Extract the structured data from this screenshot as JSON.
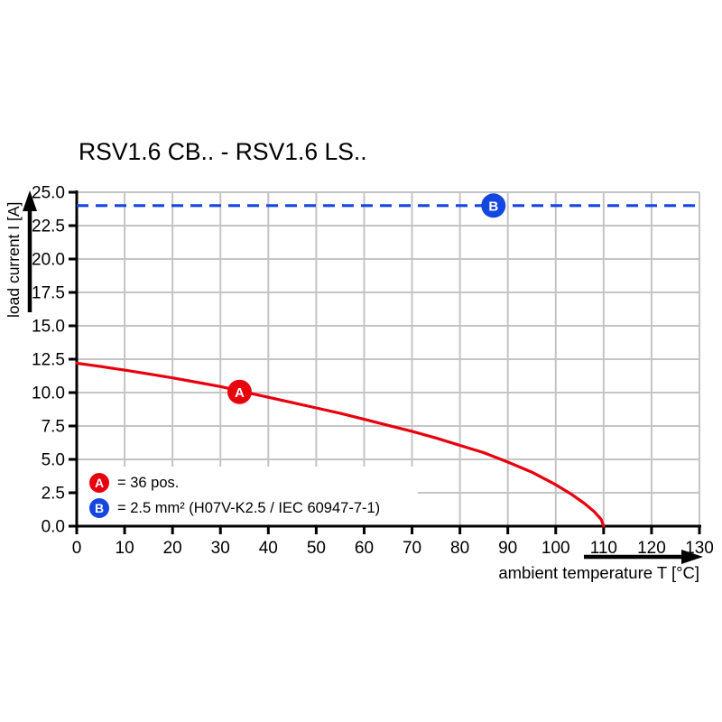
{
  "page": {
    "background": "#ffffff"
  },
  "colors": {
    "series_a": "#e8000d",
    "series_b": "#1546e0",
    "grid": "#c4c4c4",
    "axis": "#000000"
  },
  "legend": {
    "items": [
      {
        "symbol": "A",
        "text": "= 36 pos.",
        "color": "#e8000d"
      },
      {
        "symbol": "B",
        "text": "= 2.5 mm² (H07V-K2.5 / IEC 60947-7-1)",
        "color": "#1546e0"
      }
    ]
  },
  "chart_data": {
    "type": "line",
    "title": "RSV1.6 CB.. - RSV1.6 LS..",
    "xlabel": "ambient temperature T [°C]",
    "ylabel": "load current I [A]",
    "xlim": [
      0,
      130
    ],
    "ylim": [
      0,
      25
    ],
    "x_ticks": [
      0,
      10,
      20,
      30,
      40,
      50,
      60,
      70,
      80,
      90,
      100,
      110,
      120,
      130
    ],
    "y_tick_labels": [
      "0.0",
      "2.5",
      "5.0",
      "7.5",
      "10.0",
      "12.5",
      "15.0",
      "17.5",
      "20.0",
      "22.5",
      "25.0"
    ],
    "grid": true,
    "legend_position": "lower-left-inside",
    "series": [
      {
        "name": "A",
        "meaning": "= 36 pos.",
        "color": "#e8000d",
        "style": "solid",
        "points": [
          [
            0,
            12.2
          ],
          [
            5,
            11.95
          ],
          [
            10,
            11.68
          ],
          [
            15,
            11.4
          ],
          [
            20,
            11.1
          ],
          [
            25,
            10.78
          ],
          [
            30,
            10.45
          ],
          [
            35,
            10.05
          ],
          [
            40,
            9.65
          ],
          [
            45,
            9.25
          ],
          [
            50,
            8.85
          ],
          [
            55,
            8.45
          ],
          [
            60,
            8.0
          ],
          [
            65,
            7.55
          ],
          [
            70,
            7.1
          ],
          [
            75,
            6.6
          ],
          [
            80,
            6.05
          ],
          [
            85,
            5.5
          ],
          [
            90,
            4.8
          ],
          [
            95,
            4.05
          ],
          [
            100,
            3.1
          ],
          [
            103,
            2.45
          ],
          [
            106,
            1.7
          ],
          [
            108,
            1.1
          ],
          [
            109.5,
            0.5
          ],
          [
            110,
            0
          ]
        ]
      },
      {
        "name": "B",
        "meaning": "= 2.5 mm² (H07V-K2.5 / IEC 60947-7-1)",
        "color": "#1546e0",
        "style": "dashed",
        "constant_value": 24
      }
    ],
    "markers": [
      {
        "label": "A",
        "x": 34,
        "y": 10.05,
        "color": "#e8000d"
      },
      {
        "label": "B",
        "x": 87,
        "y": 24,
        "color": "#1546e0"
      }
    ]
  }
}
